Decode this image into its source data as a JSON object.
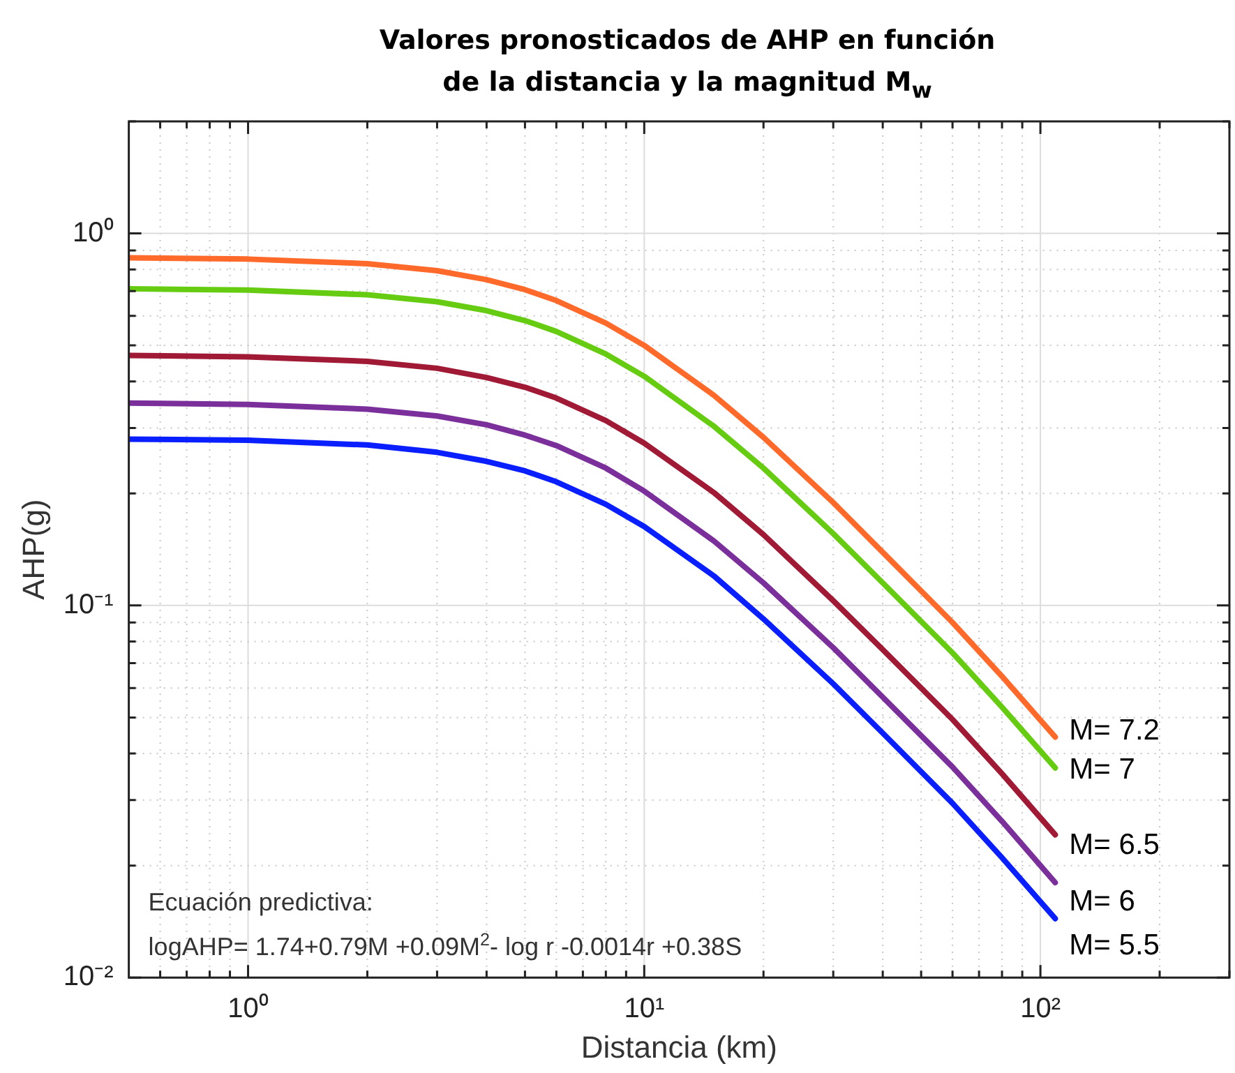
{
  "chart_data": {
    "type": "line",
    "title": "Valores pronosticados de AHP en función\nde la distancia y la magnitud M$_{w}$",
    "xlabel": "Distancia (km)",
    "ylabel": "AHP(g)",
    "log": "xy",
    "grid": true,
    "legend": false,
    "marker": "none",
    "line_style": "solid",
    "xlim": [
      0.5,
      300
    ],
    "ylim": [
      0.01,
      2
    ],
    "xticks": [
      {
        "value": 0.6,
        "label": null
      },
      {
        "value": 0.7,
        "label": null
      },
      {
        "value": 0.8,
        "label": null
      },
      {
        "value": 0.9,
        "label": null
      },
      {
        "value": 1,
        "label": "10⁰"
      },
      {
        "value": 2,
        "label": null
      },
      {
        "value": 3,
        "label": null
      },
      {
        "value": 4,
        "label": null
      },
      {
        "value": 5,
        "label": null
      },
      {
        "value": 6,
        "label": null
      },
      {
        "value": 7,
        "label": null
      },
      {
        "value": 8,
        "label": null
      },
      {
        "value": 9,
        "label": null
      },
      {
        "value": 10,
        "label": "10¹"
      },
      {
        "value": 20,
        "label": null
      },
      {
        "value": 30,
        "label": null
      },
      {
        "value": 40,
        "label": null
      },
      {
        "value": 50,
        "label": null
      },
      {
        "value": 60,
        "label": null
      },
      {
        "value": 70,
        "label": null
      },
      {
        "value": 80,
        "label": null
      },
      {
        "value": 90,
        "label": null
      },
      {
        "value": 100,
        "label": "10²"
      },
      {
        "value": 200,
        "label": null
      },
      {
        "value": 300,
        "label": null
      }
    ],
    "yticks": [
      {
        "value": 0.01,
        "label": "10⁻²"
      },
      {
        "value": 0.02,
        "label": null
      },
      {
        "value": 0.03,
        "label": null
      },
      {
        "value": 0.04,
        "label": null
      },
      {
        "value": 0.05,
        "label": null
      },
      {
        "value": 0.06,
        "label": null
      },
      {
        "value": 0.07,
        "label": null
      },
      {
        "value": 0.08,
        "label": null
      },
      {
        "value": 0.09,
        "label": null
      },
      {
        "value": 0.1,
        "label": "10⁻¹"
      },
      {
        "value": 0.2,
        "label": null
      },
      {
        "value": 0.3,
        "label": null
      },
      {
        "value": 0.4,
        "label": null
      },
      {
        "value": 0.5,
        "label": null
      },
      {
        "value": 0.6,
        "label": null
      },
      {
        "value": 0.7,
        "label": null
      },
      {
        "value": 0.8,
        "label": null
      },
      {
        "value": 0.9,
        "label": null
      },
      {
        "value": 1,
        "label": "10⁰"
      },
      {
        "value": 2,
        "label": null
      }
    ],
    "x": [
      0.5,
      1,
      2,
      3,
      4,
      5,
      6,
      8,
      10,
      15,
      20,
      30,
      40,
      60,
      80,
      109
    ],
    "series": [
      {
        "name": "M= 7.2",
        "color": "#ff6a2b",
        "values": [
          0.86,
          0.853,
          0.829,
          0.794,
          0.751,
          0.706,
          0.66,
          0.574,
          0.5,
          0.367,
          0.283,
          0.189,
          0.139,
          0.09,
          0.0645,
          0.0443
        ]
      },
      {
        "name": "M= 7",
        "color": "#66cc11",
        "values": [
          0.71,
          0.704,
          0.684,
          0.655,
          0.62,
          0.583,
          0.545,
          0.474,
          0.413,
          0.303,
          0.234,
          0.156,
          0.115,
          0.0746,
          0.0533,
          0.0366
        ]
      },
      {
        "name": "M= 6.5",
        "color": "#a01a35",
        "values": [
          0.47,
          0.466,
          0.453,
          0.434,
          0.41,
          0.386,
          0.361,
          0.314,
          0.273,
          0.201,
          0.155,
          0.103,
          0.0761,
          0.0494,
          0.0353,
          0.0242
        ]
      },
      {
        "name": "M= 6",
        "color": "#7b2f9a",
        "values": [
          0.35,
          0.347,
          0.337,
          0.323,
          0.306,
          0.287,
          0.269,
          0.234,
          0.203,
          0.149,
          0.115,
          0.077,
          0.0567,
          0.0368,
          0.0263,
          0.018
        ]
      },
      {
        "name": "M= 5.5",
        "color": "#0a1fff",
        "values": [
          0.28,
          0.278,
          0.27,
          0.258,
          0.244,
          0.23,
          0.215,
          0.187,
          0.163,
          0.12,
          0.092,
          0.0616,
          0.0454,
          0.0294,
          0.021,
          0.0144
        ]
      }
    ],
    "annotations": [
      "Ecuación predictiva:",
      "logAHP= 1.74+0.79M +0.09M$^{2}$- log r -0.0014r +0.38S"
    ]
  }
}
